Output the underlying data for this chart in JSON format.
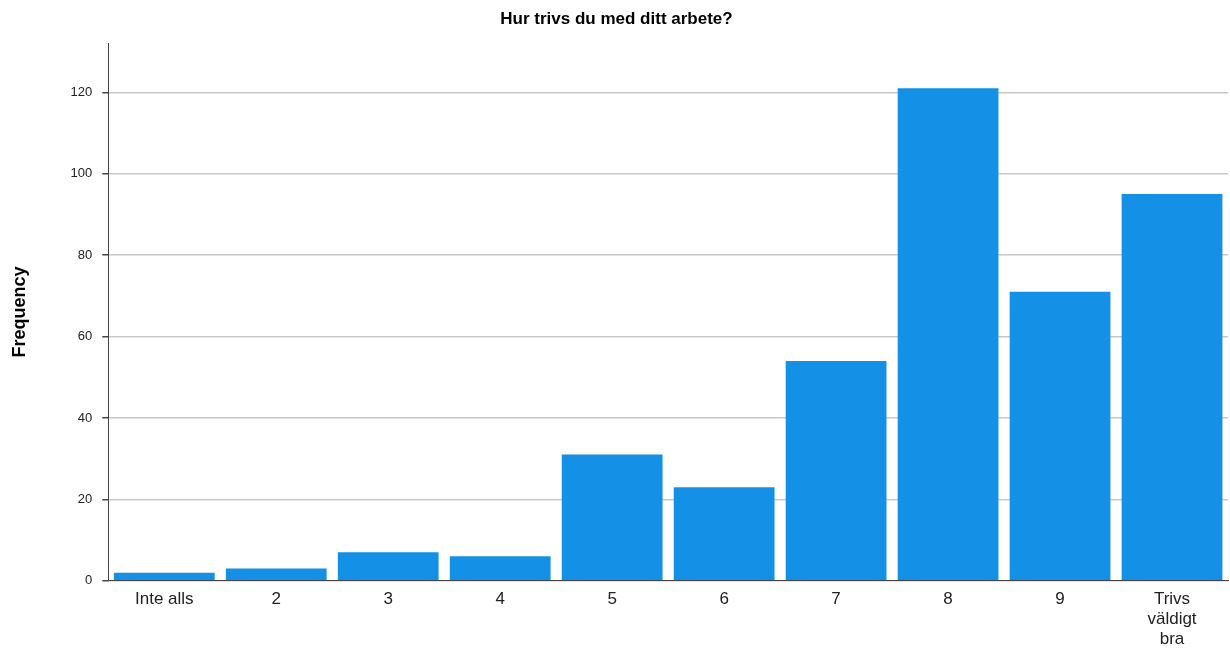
{
  "chart_data": {
    "type": "bar",
    "title": "Hur trivs du med ditt arbete?",
    "ylabel": "Frequency",
    "categories": [
      "Inte alls",
      "2",
      "3",
      "4",
      "5",
      "6",
      "7",
      "8",
      "9",
      "Trivs väldigt bra"
    ],
    "values": [
      2,
      3,
      7,
      6,
      31,
      23,
      54,
      121,
      71,
      95
    ],
    "color": "#1490e6",
    "ylim": [
      0,
      132
    ],
    "yticks": [
      0,
      20,
      40,
      60,
      80,
      100,
      120
    ],
    "grid": "y",
    "legend": false
  }
}
